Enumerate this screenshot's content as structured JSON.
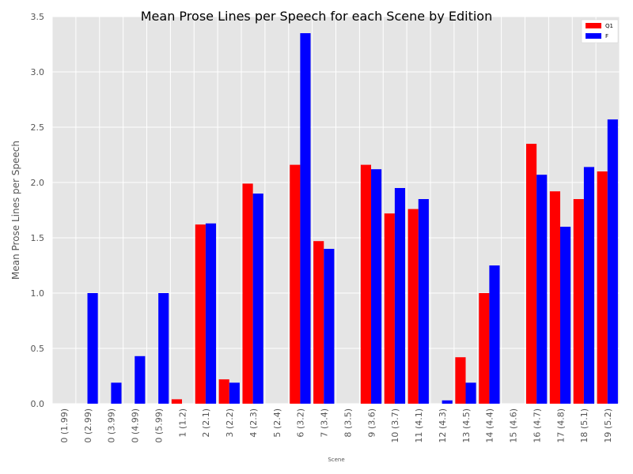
{
  "chart_data": {
    "type": "bar",
    "title": "Mean Prose Lines per Speech for each Scene by Edition",
    "xlabel": "Scene",
    "ylabel": "Mean Prose Lines per Speech",
    "ylim": [
      0,
      3.5
    ],
    "yticks": [
      "0.0",
      "0.5",
      "1.0",
      "1.5",
      "2.0",
      "2.5",
      "3.0",
      "3.5"
    ],
    "grid": true,
    "legend_position": "top-right",
    "categories": [
      "0 (1.99)",
      "0 (2.99)",
      "0 (3.99)",
      "0 (4.99)",
      "0 (5.99)",
      "1 (1.2)",
      "2 (2.1)",
      "3 (2.2)",
      "4 (2.3)",
      "5 (2.4)",
      "6 (3.2)",
      "7 (3.4)",
      "8 (3.5)",
      "9 (3.6)",
      "10 (3.7)",
      "11 (4.1)",
      "12 (4.3)",
      "13 (4.5)",
      "14 (4.4)",
      "15 (4.6)",
      "16 (4.7)",
      "17 (4.8)",
      "18 (5.1)",
      "19 (5.2)"
    ],
    "series": [
      {
        "name": "Q1",
        "color": "#ff0000",
        "values": [
          0,
          0,
          0,
          0,
          0,
          0.04,
          1.62,
          0.22,
          1.99,
          0,
          2.16,
          1.47,
          0,
          2.16,
          1.72,
          1.76,
          0,
          0.42,
          1.0,
          0,
          2.35,
          1.92,
          1.85,
          2.1
        ]
      },
      {
        "name": "F",
        "color": "#0000ff",
        "values": [
          0,
          1.0,
          0.19,
          0.43,
          1.0,
          0,
          1.63,
          0.19,
          1.9,
          0,
          3.35,
          1.4,
          0,
          2.12,
          1.95,
          1.85,
          0.03,
          0.19,
          1.25,
          0,
          2.07,
          1.6,
          2.14,
          2.57
        ]
      }
    ]
  }
}
